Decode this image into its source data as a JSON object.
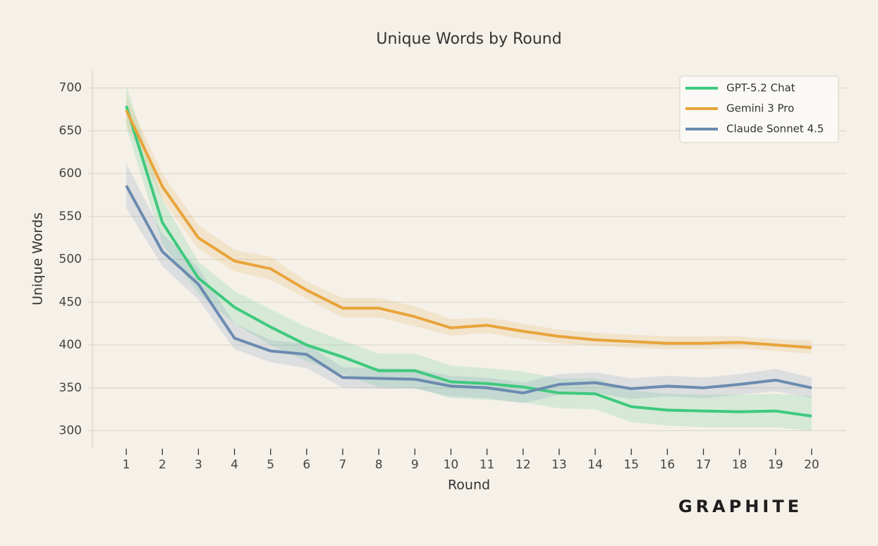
{
  "chart_data": {
    "type": "line",
    "title": "Unique Words by Round",
    "x_label": "Round",
    "y_label": "Unique Words",
    "watermark": "GRAPHITE",
    "x": [
      1,
      2,
      3,
      4,
      5,
      6,
      7,
      8,
      9,
      10,
      11,
      12,
      13,
      14,
      15,
      16,
      17,
      18,
      19,
      20
    ],
    "xlim": [
      0.06,
      20.96
    ],
    "xticks": [
      1,
      2,
      3,
      4,
      5,
      6,
      7,
      8,
      9,
      10,
      11,
      12,
      13,
      14,
      15,
      16,
      17,
      18,
      19,
      20
    ],
    "ylim": [
      279,
      722
    ],
    "yticks": [
      300,
      350,
      400,
      450,
      500,
      550,
      600,
      650,
      700
    ],
    "grid": true,
    "legend": "upper right",
    "series": [
      {
        "name": "GPT-5.2 Chat",
        "color": "#3ec97e",
        "values": [
          679,
          543,
          478,
          444,
          421,
          400,
          386,
          370,
          370,
          357,
          355,
          351,
          344,
          343,
          328,
          324,
          323,
          322,
          323,
          317
        ],
        "lower": [
          655,
          518,
          460,
          425,
          400,
          381,
          366,
          351,
          350,
          338,
          336,
          333,
          326,
          325,
          310,
          306,
          304,
          304,
          304,
          300
        ],
        "upper": [
          703,
          570,
          497,
          463,
          442,
          421,
          405,
          390,
          390,
          376,
          373,
          369,
          361,
          361,
          347,
          343,
          342,
          342,
          343,
          340
        ]
      },
      {
        "name": "Gemini 3 Pro",
        "color": "#e8a43a",
        "values": [
          674,
          585,
          525,
          498,
          489,
          464,
          443,
          443,
          433,
          420,
          423,
          416,
          410,
          406,
          404,
          402,
          402,
          403,
          400,
          397
        ],
        "lower": [
          658,
          570,
          512,
          486,
          476,
          454,
          432,
          432,
          422,
          411,
          414,
          407,
          402,
          399,
          397,
          395,
          395,
          396,
          393,
          390
        ],
        "upper": [
          690,
          600,
          540,
          511,
          503,
          474,
          455,
          455,
          445,
          430,
          432,
          425,
          418,
          414,
          412,
          410,
          410,
          410,
          407,
          405
        ]
      },
      {
        "name": "Claude Sonnet 4.5",
        "color": "#6b8bb0",
        "values": [
          586,
          509,
          471,
          408,
          393,
          389,
          362,
          361,
          360,
          352,
          350,
          344,
          354,
          356,
          349,
          352,
          350,
          354,
          359,
          350
        ],
        "lower": [
          560,
          492,
          453,
          395,
          380,
          373,
          350,
          349,
          349,
          340,
          338,
          332,
          342,
          344,
          337,
          340,
          338,
          342,
          346,
          338
        ],
        "upper": [
          612,
          530,
          490,
          425,
          406,
          401,
          374,
          373,
          372,
          364,
          362,
          356,
          366,
          368,
          361,
          364,
          362,
          366,
          372,
          362
        ]
      }
    ]
  }
}
